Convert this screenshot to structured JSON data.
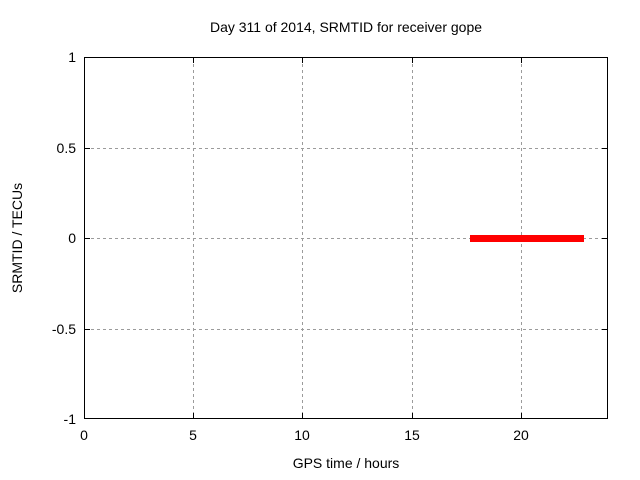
{
  "chart": {
    "title": "Day 311 of 2014, SRMTID for receiver gope",
    "xlabel": "GPS time / hours",
    "ylabel": "SRMTID / TECUs"
  },
  "chart_data": {
    "type": "line",
    "title": "Day 311 of 2014, SRMTID for receiver gope",
    "xlabel": "GPS time / hours",
    "ylabel": "SRMTID / TECUs",
    "xlim": [
      0,
      24
    ],
    "ylim": [
      -1,
      1
    ],
    "x_ticks": [
      0,
      5,
      10,
      15,
      20
    ],
    "y_ticks": [
      -1,
      -0.5,
      0,
      0.5,
      1
    ],
    "grid": true,
    "grid_color": "#9b9b9b",
    "border_color": "#000000",
    "legend": "none",
    "series": [
      {
        "name": "SRMTID",
        "color": "#ff0000",
        "style": "thick-line",
        "points": [
          [
            17.7,
            0
          ],
          [
            22.9,
            0
          ]
        ]
      }
    ]
  }
}
